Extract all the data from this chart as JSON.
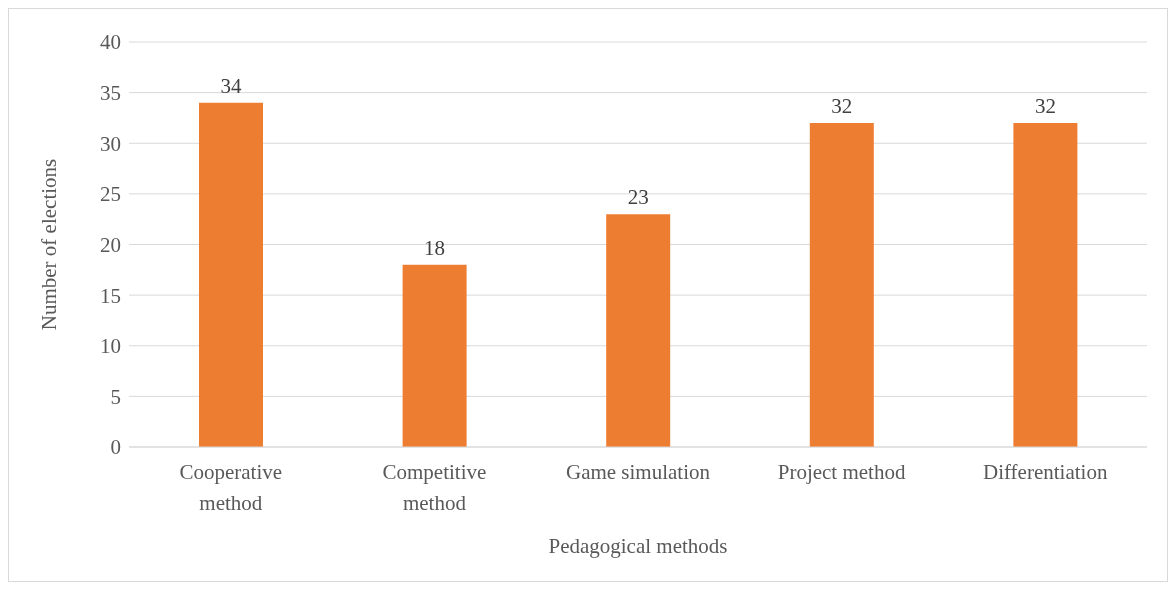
{
  "chart_data": {
    "type": "bar",
    "xlabel": "Pedagogical methods",
    "ylabel": "Number of elections",
    "categories": [
      "Cooperative method",
      "Competitive method",
      "Game simulation",
      "Project method",
      "Differentiation"
    ],
    "values": [
      34,
      18,
      23,
      32,
      32
    ],
    "color": "#ed7d31",
    "data_labels": true,
    "ylim": [
      0,
      40
    ],
    "yticks": [
      0,
      5,
      10,
      15,
      20,
      25,
      30,
      35,
      40
    ],
    "grid": "y"
  }
}
